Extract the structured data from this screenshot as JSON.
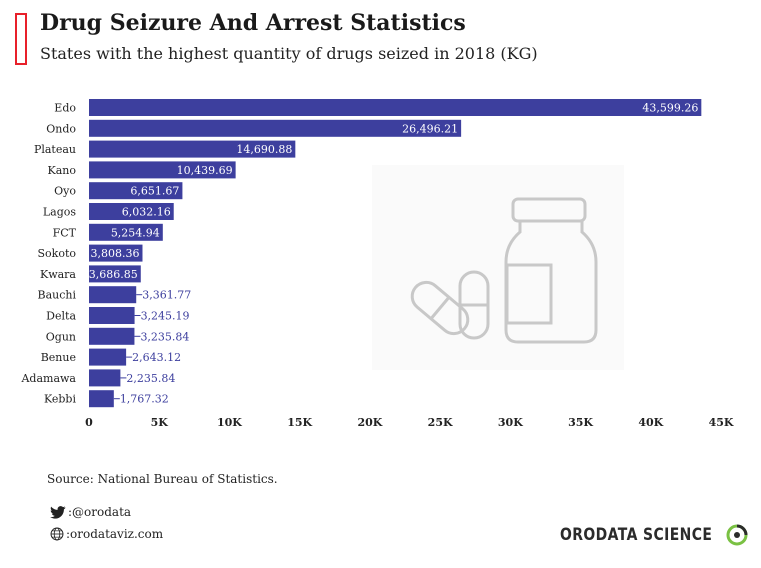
{
  "header": {
    "title": "Drug Seizure And Arrest Statistics",
    "subtitle": "States with the highest quantity of drugs seized in 2018 (KG)"
  },
  "footer": {
    "source": "Source: National Bureau of Statistics.",
    "twitter": ":@orodata",
    "website": ":orodataviz.com",
    "brand": "ORODATA SCIENCE"
  },
  "colors": {
    "bar": "#3d3f9e",
    "label_outside": "#3d3f9e",
    "label_inside": "#ffffff",
    "accent": "#e8202a",
    "brand_green": "#7ac143",
    "watermark": "#c8c8c8"
  },
  "icons": [
    "twitter-icon",
    "globe-icon",
    "pill-bottle-watermark-icon",
    "brand-logo-icon"
  ],
  "chart_data": {
    "type": "bar",
    "orientation": "horizontal",
    "categories": [
      "Edo",
      "Ondo",
      "Plateau",
      "Kano",
      "Oyo",
      "Lagos",
      "FCT",
      "Sokoto",
      "Kwara",
      "Bauchi",
      "Delta",
      "Ogun",
      "Benue",
      "Adamawa",
      "Kebbi"
    ],
    "values": [
      43599.26,
      26496.21,
      14690.88,
      10439.69,
      6651.67,
      6032.16,
      5254.94,
      3808.36,
      3686.85,
      3361.77,
      3245.19,
      3235.84,
      2643.12,
      2235.84,
      1767.32
    ],
    "value_labels": [
      "43,599.26",
      "26,496.21",
      "14,690.88",
      "10,439.69",
      "6,651.67",
      "6,032.16",
      "5,254.94",
      "3,808.36",
      "3,686.85",
      "3,361.77",
      "3,245.19",
      "3,235.84",
      "2,643.12",
      "2,235.84",
      "1,767.32"
    ],
    "xlim": [
      0,
      45000
    ],
    "x_ticks": [
      0,
      5000,
      10000,
      15000,
      20000,
      25000,
      30000,
      35000,
      40000,
      45000
    ],
    "x_tick_labels": [
      "0",
      "5K",
      "10K",
      "15K",
      "20K",
      "25K",
      "30K",
      "35K",
      "40K",
      "45K"
    ],
    "grid": false,
    "legend": "none"
  }
}
